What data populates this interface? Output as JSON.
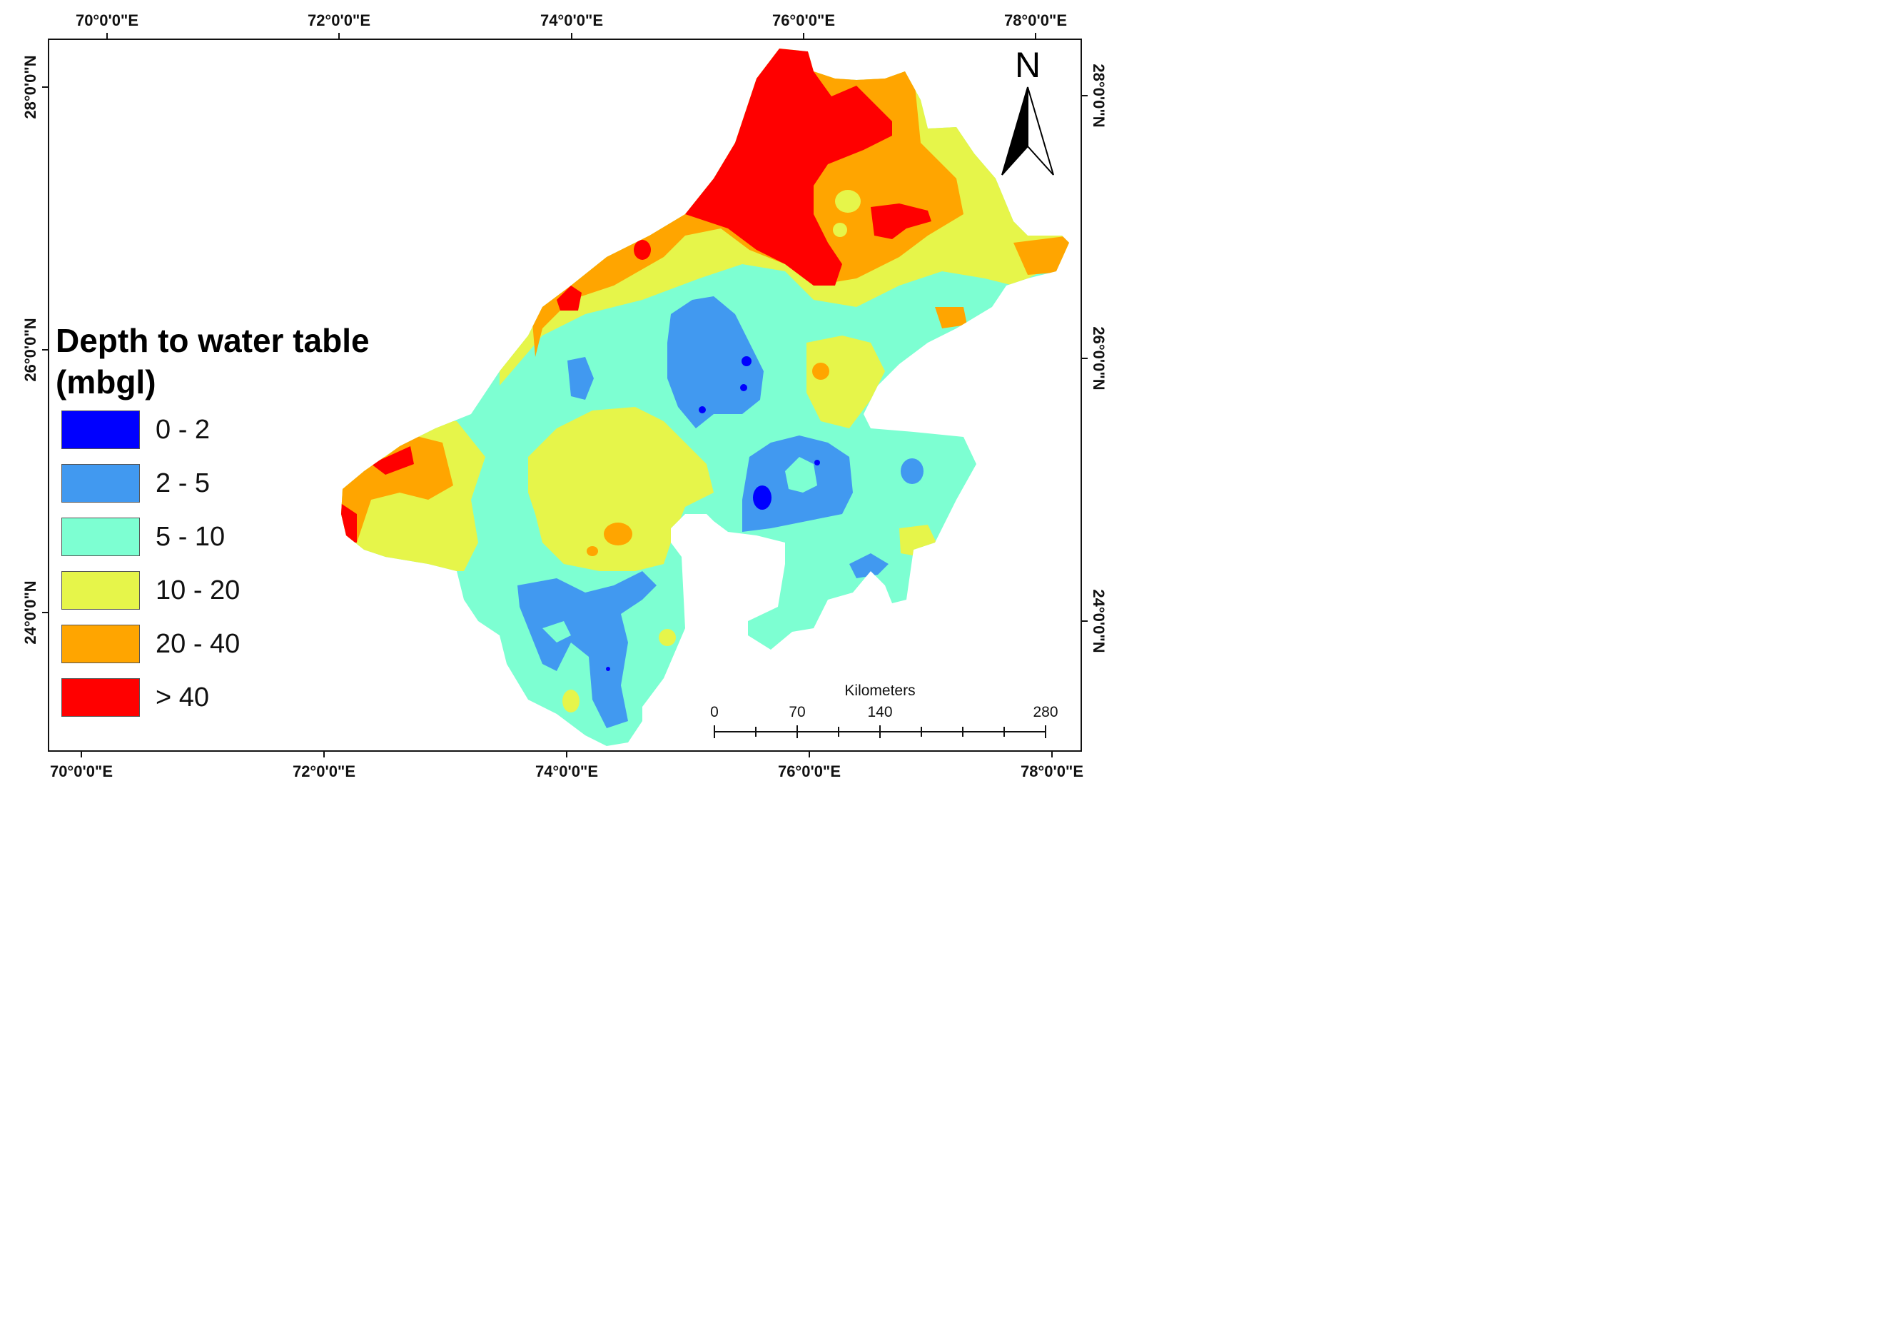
{
  "map": {
    "top_ticks": [
      "70°0'0\"E",
      "72°0'0\"E",
      "74°0'0\"E",
      "76°0'0\"E",
      "78°0'0\"E"
    ],
    "bottom_ticks": [
      "70°0'0\"E",
      "72°0'0\"E",
      "74°0'0\"E",
      "76°0'0\"E",
      "78°0'0\"E"
    ],
    "left_ticks": [
      "28°0'0\"N",
      "26°0'0\"N",
      "24°0'0\"N"
    ],
    "right_ticks": [
      "28°0'0\"N",
      "26°0'0\"N",
      "24°0'0\"N"
    ]
  },
  "legend": {
    "title_line1": "Depth to water table",
    "title_line2": "(mbgl)",
    "classes": [
      {
        "label": "0 - 2",
        "color": "#0000ff"
      },
      {
        "label": "2 - 5",
        "color": "#4199f0"
      },
      {
        "label": "5 - 10",
        "color": "#7dffd2"
      },
      {
        "label": "10 - 20",
        "color": "#e6f54a"
      },
      {
        "label": "20 - 40",
        "color": "#ffa500"
      },
      {
        "label": "> 40",
        "color": "#ff0000"
      }
    ]
  },
  "north_arrow": {
    "letter": "N"
  },
  "scale_bar": {
    "unit": "Kilometers",
    "labels": [
      "0",
      "70",
      "140",
      "280"
    ]
  }
}
